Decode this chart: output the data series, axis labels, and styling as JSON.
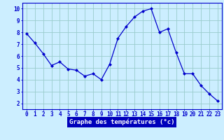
{
  "x": [
    0,
    1,
    2,
    3,
    4,
    5,
    6,
    7,
    8,
    9,
    10,
    11,
    12,
    13,
    14,
    15,
    16,
    17,
    18,
    19,
    20,
    21,
    22,
    23
  ],
  "y": [
    7.9,
    7.1,
    6.2,
    5.2,
    5.5,
    4.9,
    4.8,
    4.3,
    4.5,
    4.0,
    5.3,
    7.5,
    8.5,
    9.3,
    9.8,
    10.0,
    8.0,
    8.3,
    6.3,
    4.5,
    4.5,
    3.5,
    2.8,
    2.2
  ],
  "line_color": "#0000cc",
  "marker": "D",
  "marker_size": 2.0,
  "bg_color": "#cceeff",
  "grid_color": "#99cccc",
  "xlabel": "Graphe des températures (°c)",
  "xlabel_bg": "#0000bb",
  "xlabel_color": "#ffffff",
  "ylim": [
    1.5,
    10.5
  ],
  "xlim": [
    -0.5,
    23.5
  ],
  "yticks": [
    2,
    3,
    4,
    5,
    6,
    7,
    8,
    9,
    10
  ],
  "xticks": [
    0,
    1,
    2,
    3,
    4,
    5,
    6,
    7,
    8,
    9,
    10,
    11,
    12,
    13,
    14,
    15,
    16,
    17,
    18,
    19,
    20,
    21,
    22,
    23
  ],
  "tick_fontsize": 5.5,
  "xlabel_fontsize": 6.5
}
